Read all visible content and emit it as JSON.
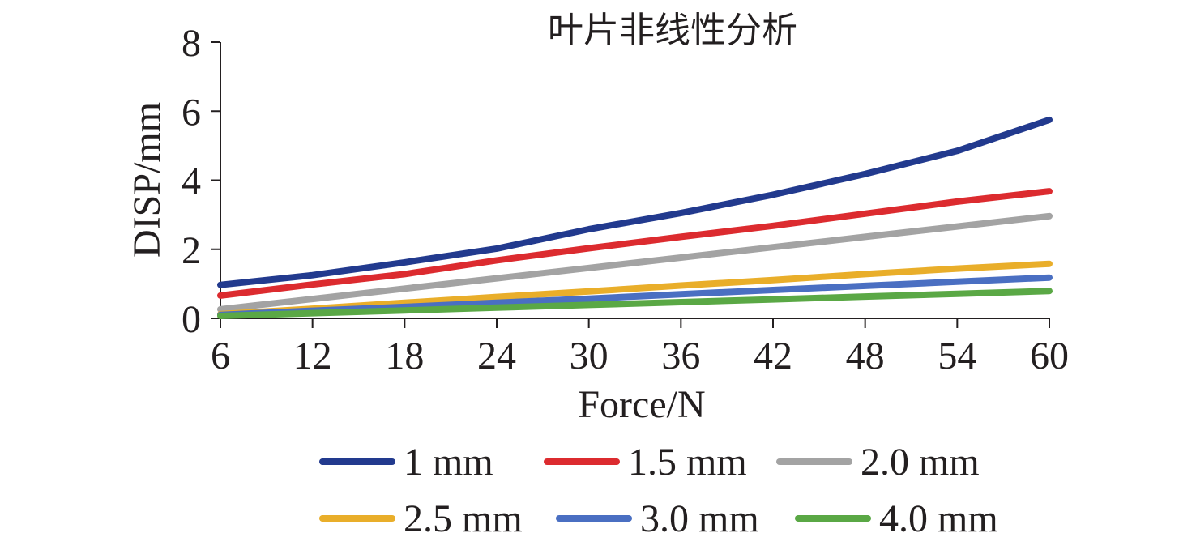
{
  "chart_data": {
    "type": "line",
    "title": "叶片非线性分析",
    "xlabel": "Force/N",
    "ylabel": "DISP/mm",
    "x": [
      6,
      12,
      18,
      24,
      30,
      36,
      42,
      48,
      54,
      60
    ],
    "x_tick_labels": [
      "6",
      "12",
      "18",
      "24",
      "30",
      "36",
      "42",
      "48",
      "54",
      "60"
    ],
    "ylim": [
      0,
      8
    ],
    "y_tick_labels": [
      "0",
      "2",
      "4",
      "6",
      "8"
    ],
    "grid": false,
    "legend_position": "bottom",
    "series": [
      {
        "name": "1 mm",
        "color": "#223a8e",
        "values": [
          0.97,
          1.25,
          1.62,
          2.02,
          2.58,
          3.05,
          3.58,
          4.18,
          4.85,
          5.75
        ]
      },
      {
        "name": "1.5 mm",
        "color": "#dc2b2f",
        "values": [
          0.66,
          0.98,
          1.28,
          1.68,
          2.03,
          2.36,
          2.68,
          3.03,
          3.38,
          3.68
        ]
      },
      {
        "name": "2.0 mm",
        "color": "#a3a3a3",
        "values": [
          0.26,
          0.56,
          0.86,
          1.16,
          1.46,
          1.76,
          2.06,
          2.36,
          2.66,
          2.96
        ]
      },
      {
        "name": "2.5 mm",
        "color": "#e9ae2a",
        "values": [
          0.12,
          0.28,
          0.45,
          0.62,
          0.78,
          0.95,
          1.11,
          1.28,
          1.44,
          1.58
        ]
      },
      {
        "name": "3.0 mm",
        "color": "#4a6fc2",
        "values": [
          0.1,
          0.22,
          0.33,
          0.45,
          0.57,
          0.7,
          0.82,
          0.94,
          1.06,
          1.18
        ]
      },
      {
        "name": "4.0 mm",
        "color": "#5aa845",
        "values": [
          0.07,
          0.15,
          0.23,
          0.31,
          0.39,
          0.47,
          0.55,
          0.63,
          0.71,
          0.79
        ]
      }
    ]
  }
}
